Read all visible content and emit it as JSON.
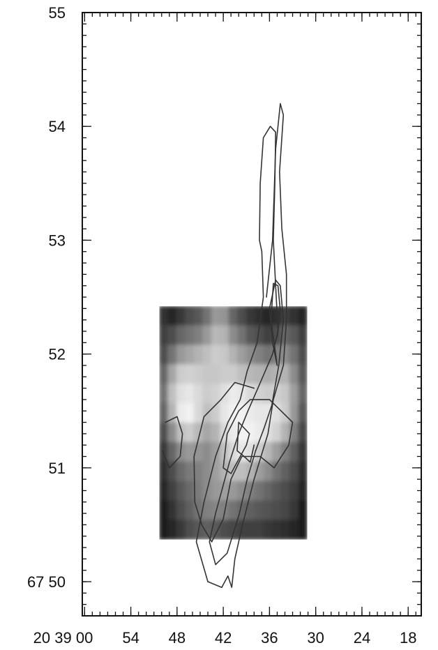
{
  "chart_data": {
    "type": "heatmap",
    "title": "",
    "xlabel": "",
    "ylabel": "",
    "x_axis": {
      "direction": "decreasing",
      "ticks": [
        {
          "value": 60,
          "label": "20 39 00"
        },
        {
          "value": 54,
          "label": "54"
        },
        {
          "value": 48,
          "label": "48"
        },
        {
          "value": 42,
          "label": "42"
        },
        {
          "value": 36,
          "label": "36"
        },
        {
          "value": 30,
          "label": "30"
        },
        {
          "value": 24,
          "label": "24"
        },
        {
          "value": 18,
          "label": "18"
        }
      ]
    },
    "y_axis": {
      "ticks": [
        {
          "value": 50,
          "label": "67 50"
        },
        {
          "value": 51,
          "label": "51"
        },
        {
          "value": 52,
          "label": "52"
        },
        {
          "value": 53,
          "label": "53"
        },
        {
          "value": 54,
          "label": "54"
        },
        {
          "value": 55,
          "label": "55"
        }
      ]
    },
    "xlim": [
      60.3,
      16.3
    ],
    "ylim": [
      49.7,
      55.0
    ],
    "image_extent": {
      "x": [
        50.3,
        31.1
      ],
      "y": [
        50.37,
        52.42
      ]
    },
    "image_grid": [
      [
        0.2,
        0.15,
        0.22,
        0.3,
        0.35,
        0.45,
        0.6,
        0.58,
        0.4,
        0.3,
        0.22,
        0.18,
        0.15,
        0.18,
        0.25,
        0.2,
        0.15
      ],
      [
        0.25,
        0.3,
        0.4,
        0.45,
        0.5,
        0.6,
        0.72,
        0.7,
        0.55,
        0.45,
        0.35,
        0.3,
        0.25,
        0.3,
        0.4,
        0.35,
        0.25
      ],
      [
        0.3,
        0.45,
        0.6,
        0.65,
        0.7,
        0.75,
        0.8,
        0.78,
        0.7,
        0.62,
        0.55,
        0.5,
        0.45,
        0.5,
        0.55,
        0.45,
        0.3
      ],
      [
        0.4,
        0.65,
        0.8,
        0.82,
        0.8,
        0.78,
        0.78,
        0.8,
        0.8,
        0.75,
        0.72,
        0.7,
        0.68,
        0.7,
        0.7,
        0.55,
        0.35
      ],
      [
        0.45,
        0.75,
        0.88,
        0.9,
        0.85,
        0.8,
        0.82,
        0.88,
        0.92,
        0.9,
        0.85,
        0.82,
        0.8,
        0.82,
        0.78,
        0.62,
        0.4
      ],
      [
        0.4,
        0.7,
        0.92,
        0.95,
        0.85,
        0.75,
        0.8,
        0.9,
        0.95,
        0.95,
        0.92,
        0.9,
        0.9,
        0.88,
        0.8,
        0.6,
        0.35
      ],
      [
        0.3,
        0.55,
        0.75,
        0.8,
        0.72,
        0.65,
        0.7,
        0.85,
        0.92,
        0.95,
        0.95,
        0.92,
        0.88,
        0.82,
        0.7,
        0.5,
        0.28
      ],
      [
        0.22,
        0.4,
        0.55,
        0.6,
        0.58,
        0.55,
        0.62,
        0.75,
        0.85,
        0.9,
        0.88,
        0.8,
        0.72,
        0.62,
        0.5,
        0.38,
        0.22
      ],
      [
        0.18,
        0.3,
        0.42,
        0.48,
        0.5,
        0.55,
        0.62,
        0.7,
        0.75,
        0.75,
        0.7,
        0.62,
        0.55,
        0.45,
        0.38,
        0.3,
        0.18
      ],
      [
        0.15,
        0.25,
        0.35,
        0.42,
        0.48,
        0.55,
        0.6,
        0.62,
        0.6,
        0.55,
        0.5,
        0.45,
        0.4,
        0.35,
        0.3,
        0.25,
        0.15
      ],
      [
        0.12,
        0.2,
        0.3,
        0.38,
        0.45,
        0.5,
        0.52,
        0.5,
        0.45,
        0.4,
        0.38,
        0.35,
        0.32,
        0.3,
        0.28,
        0.22,
        0.12
      ],
      [
        0.1,
        0.15,
        0.22,
        0.3,
        0.35,
        0.38,
        0.35,
        0.3,
        0.28,
        0.25,
        0.25,
        0.25,
        0.22,
        0.2,
        0.18,
        0.15,
        0.1
      ]
    ],
    "contours": [
      {
        "group": "jet",
        "points": [
          [
            36.4,
            52.5
          ],
          [
            35.6,
            53.0
          ],
          [
            35.4,
            53.4
          ],
          [
            35.2,
            53.8
          ],
          [
            34.6,
            54.2
          ],
          [
            34.2,
            54.1
          ],
          [
            34.7,
            53.6
          ],
          [
            34.4,
            53.1
          ],
          [
            33.8,
            52.7
          ],
          [
            33.8,
            52.3
          ],
          [
            34.2,
            51.9
          ],
          [
            35.5,
            51.6
          ],
          [
            36.2,
            51.3
          ],
          [
            38.0,
            50.9
          ],
          [
            39.5,
            50.5
          ],
          [
            40.5,
            50.2
          ],
          [
            40.9,
            49.95
          ],
          [
            41.4,
            50.05
          ],
          [
            42.2,
            49.95
          ],
          [
            44.0,
            50.0
          ]
        ]
      },
      {
        "group": "jet",
        "points": [
          [
            44.0,
            50.0
          ],
          [
            45.5,
            50.35
          ],
          [
            44.5,
            50.7
          ],
          [
            43.0,
            51.1
          ],
          [
            41.4,
            51.4
          ],
          [
            39.8,
            51.6
          ],
          [
            38.9,
            51.85
          ],
          [
            37.6,
            52.1
          ],
          [
            36.8,
            52.5
          ],
          [
            37.0,
            52.9
          ],
          [
            37.3,
            53.0
          ],
          [
            37.2,
            53.5
          ],
          [
            36.8,
            53.9
          ],
          [
            35.9,
            54.0
          ]
        ]
      },
      {
        "group": "jet",
        "points": [
          [
            35.9,
            54.0
          ],
          [
            35.2,
            53.95
          ],
          [
            35.3,
            53.5
          ],
          [
            35.5,
            53.0
          ],
          [
            35.2,
            52.6
          ],
          [
            34.9,
            52.2
          ],
          [
            35.6,
            52.0
          ],
          [
            37.5,
            51.7
          ],
          [
            38.8,
            51.5
          ],
          [
            40.0,
            51.3
          ],
          [
            41.2,
            51.05
          ],
          [
            43.0,
            50.6
          ],
          [
            43.8,
            50.35
          ],
          [
            43.0,
            50.15
          ],
          [
            41.5,
            50.25
          ],
          [
            39.9,
            50.6
          ],
          [
            38.9,
            50.9
          ],
          [
            37.8,
            51.15
          ]
        ]
      },
      {
        "group": "jet",
        "points": [
          [
            37.8,
            51.15
          ],
          [
            36.7,
            51.35
          ],
          [
            35.7,
            51.55
          ],
          [
            34.8,
            51.9
          ],
          [
            34.2,
            52.3
          ],
          [
            34.6,
            52.6
          ],
          [
            35.2,
            52.65
          ],
          [
            36.0,
            52.4
          ],
          [
            35.6,
            52.1
          ],
          [
            35.0,
            51.9
          ]
        ]
      },
      {
        "group": "jet",
        "points": [
          [
            35.0,
            51.9
          ],
          [
            35.8,
            52.3
          ],
          [
            35.5,
            52.62
          ],
          [
            34.9,
            52.6
          ],
          [
            34.6,
            52.38
          ],
          [
            35.0,
            52.15
          ]
        ]
      },
      {
        "group": "core",
        "points": [
          [
            38.0,
            51.7
          ],
          [
            40.5,
            51.75
          ],
          [
            42.3,
            51.6
          ],
          [
            44.5,
            51.45
          ],
          [
            45.8,
            51.1
          ],
          [
            45.7,
            50.7
          ],
          [
            44.8,
            50.5
          ],
          [
            43.5,
            50.35
          ],
          [
            42.0,
            50.55
          ],
          [
            41.0,
            50.9
          ],
          [
            39.6,
            51.1
          ],
          [
            37.2,
            51.1
          ],
          [
            35.4,
            51.0
          ],
          [
            33.5,
            51.2
          ],
          [
            33.0,
            51.4
          ],
          [
            34.5,
            51.5
          ],
          [
            36.0,
            51.6
          ]
        ]
      },
      {
        "group": "core",
        "points": [
          [
            36.0,
            51.6
          ],
          [
            38.5,
            51.6
          ],
          [
            40.0,
            51.5
          ],
          [
            41.5,
            51.3
          ],
          [
            42.0,
            51.0
          ],
          [
            41.0,
            50.95
          ],
          [
            39.0,
            51.2
          ],
          [
            38.6,
            51.3
          ]
        ]
      },
      {
        "group": "core",
        "points": [
          [
            38.6,
            51.3
          ],
          [
            40.0,
            51.4
          ],
          [
            40.2,
            51.15
          ],
          [
            39.3,
            51.1
          ],
          [
            38.5,
            51.05
          ],
          [
            38.0,
            51.2
          ]
        ]
      },
      {
        "group": "spot",
        "points": [
          [
            49.5,
            51.4
          ],
          [
            48.0,
            51.45
          ],
          [
            47.3,
            51.3
          ],
          [
            47.6,
            51.1
          ],
          [
            49.0,
            51.0
          ],
          [
            49.9,
            51.15
          ]
        ]
      }
    ]
  }
}
